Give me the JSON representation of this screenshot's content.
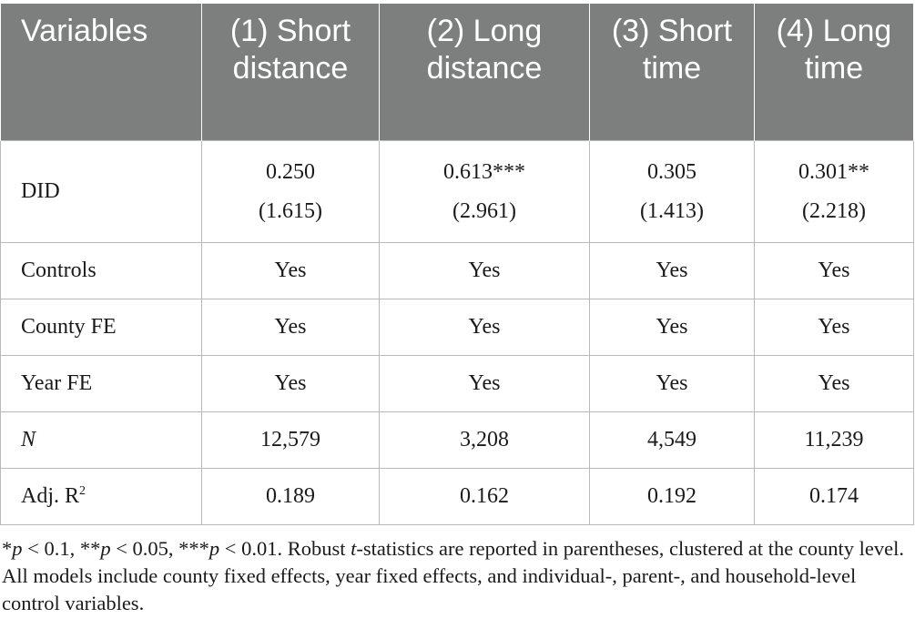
{
  "table": {
    "headers": [
      "Variables",
      "(1) Short distance",
      "(2) Long distance",
      "(3) Short time",
      "(4) Long time"
    ],
    "did": {
      "label": "DID",
      "coefs": [
        "0.250",
        "0.613***",
        "0.305",
        "0.301**"
      ],
      "tstats": [
        "(1.615)",
        "(2.961)",
        "(1.413)",
        "(2.218)"
      ]
    },
    "controls": {
      "label": "Controls",
      "values": [
        "Yes",
        "Yes",
        "Yes",
        "Yes"
      ]
    },
    "county_fe": {
      "label": "County FE",
      "values": [
        "Yes",
        "Yes",
        "Yes",
        "Yes"
      ]
    },
    "year_fe": {
      "label": "Year FE",
      "values": [
        "Yes",
        "Yes",
        "Yes",
        "Yes"
      ]
    },
    "n": {
      "label": "N",
      "values": [
        "12,579",
        "3,208",
        "4,549",
        "11,239"
      ]
    },
    "adj_r2": {
      "label_main": "Adj. R",
      "label_sup": "2",
      "values": [
        "0.189",
        "0.162",
        "0.192",
        "0.174"
      ]
    }
  },
  "note": {
    "star1": "*",
    "p1": "p",
    "t1": " < 0.1, **",
    "p2": "p",
    "t2": " < 0.05, ***",
    "p3": "p",
    "t3": " < 0.01. Robust ",
    "tstat": "t",
    "t4": "-statistics are reported in parentheses, clustered at the county level. All models include county fixed effects, year fixed effects, and individual-, parent-, and household-level control variables."
  }
}
